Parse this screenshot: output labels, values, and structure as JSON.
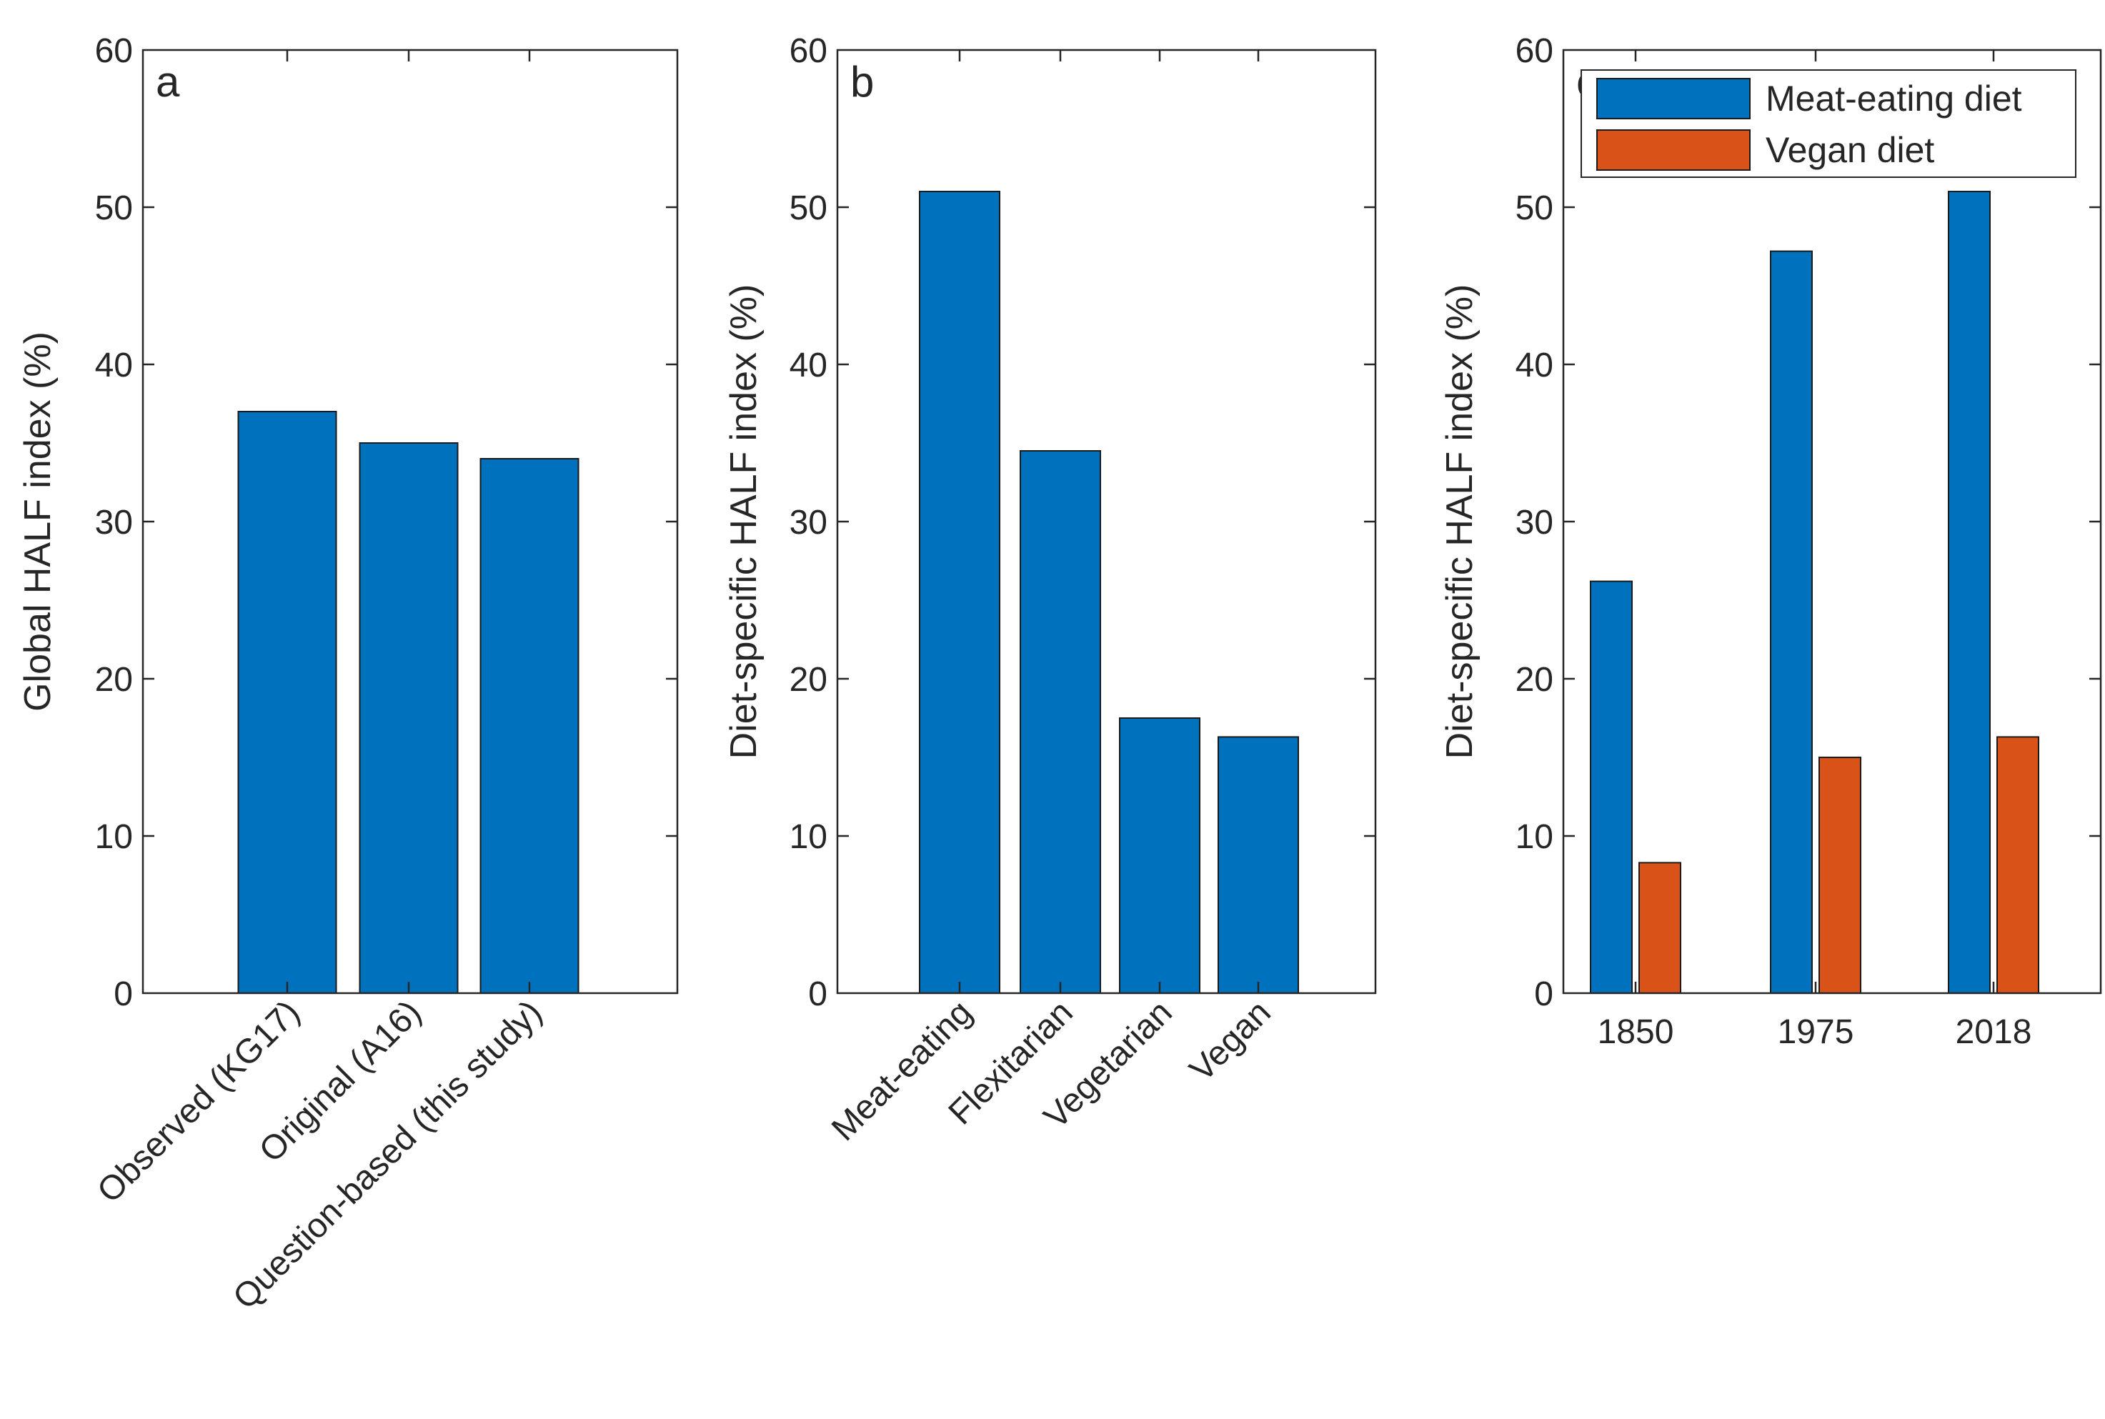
{
  "colors": {
    "blue": "#0072BD",
    "orange": "#D95319",
    "axis": "#262626",
    "background": "#ffffff"
  },
  "chart_data": [
    {
      "type": "bar",
      "panel_label": "a",
      "categories": [
        "Observed (KG17)",
        "Original (A16)",
        "Question-based (this study)"
      ],
      "values": [
        37,
        35,
        34
      ],
      "ylabel": "Global HALF index (%)",
      "ylim": [
        0,
        60
      ],
      "yticks": [
        "0",
        "10",
        "20",
        "30",
        "40",
        "50",
        "60"
      ]
    },
    {
      "type": "bar",
      "panel_label": "b",
      "categories": [
        "Meat-eating",
        "Flexitarian",
        "Vegetarian",
        "Vegan"
      ],
      "values": [
        51,
        34.5,
        17.5,
        16.3
      ],
      "ylabel": "Diet-specific HALF index (%)",
      "ylim": [
        0,
        60
      ],
      "yticks": [
        "0",
        "10",
        "20",
        "30",
        "40",
        "50",
        "60"
      ]
    },
    {
      "type": "bar",
      "panel_label": "c",
      "categories": [
        "1850",
        "1975",
        "2018"
      ],
      "series": [
        {
          "name": "Meat-eating diet",
          "values": [
            26.2,
            47.2,
            51
          ]
        },
        {
          "name": "Vegan diet",
          "values": [
            8.3,
            15,
            16.3
          ]
        }
      ],
      "ylabel": "Diet-specific HALF index (%)",
      "ylim": [
        0,
        60
      ],
      "yticks": [
        "0",
        "10",
        "20",
        "30",
        "40",
        "50",
        "60"
      ],
      "legend": "top-right"
    }
  ]
}
